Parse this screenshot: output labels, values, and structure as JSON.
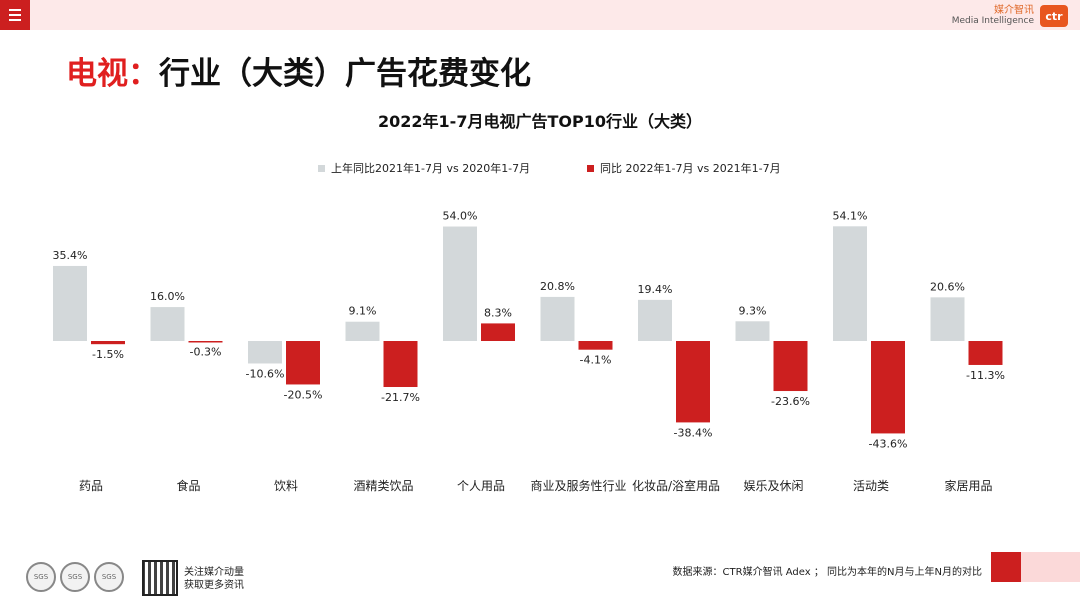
{
  "brand": {
    "cn": "媒介智讯",
    "en": "Media Intelligence",
    "logo": "ctr"
  },
  "title": {
    "accent": "电视：",
    "main": "行业（大类）广告花费变化"
  },
  "chart_data": {
    "type": "bar",
    "title": "2022年1-7月电视广告TOP10行业（大类）",
    "categories": [
      "药品",
      "食品",
      "饮料",
      "酒精类饮品",
      "个人用品",
      "商业及服务性行业",
      "化妆品/浴室用品",
      "娱乐及休闲",
      "活动类",
      "家居用品"
    ],
    "series": [
      {
        "name": "上年同比2021年1-7月  vs  2020年1-7月",
        "color": "#d3d8da",
        "values": [
          35.4,
          16.0,
          -10.6,
          9.1,
          54.0,
          20.8,
          19.4,
          9.3,
          54.1,
          20.6
        ]
      },
      {
        "name": "同比 2022年1-7月  vs  2021年1-7月",
        "color": "#cc1f1f",
        "values": [
          -1.5,
          -0.3,
          -20.5,
          -21.7,
          8.3,
          -4.1,
          -38.4,
          -23.6,
          -43.6,
          -11.3
        ]
      }
    ],
    "value_suffix": "%",
    "ylim": [
      -50,
      60
    ]
  },
  "footer": {
    "source": "数据来源：CTR媒介智讯 Adex ；  同比为本年的N月与上年N月的对比",
    "follow_line1": "关注媒介动量",
    "follow_line2": "获取更多资讯",
    "sgs": "SGS"
  },
  "icons": {
    "menu": "menu-icon"
  }
}
